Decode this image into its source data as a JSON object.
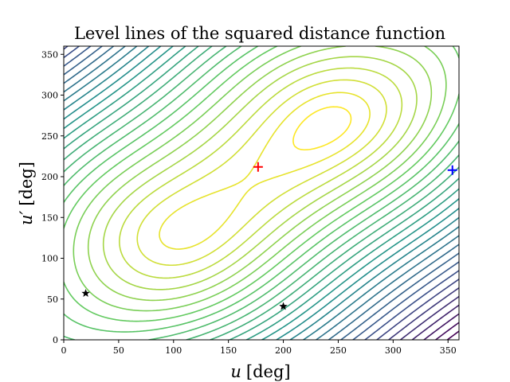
{
  "chart_data": {
    "type": "contour",
    "title": "Level lines of the squared distance function",
    "xlabel": "u [deg]",
    "xlabel_var": "u",
    "xlabel_unit": "[deg]",
    "ylabel": "u′ [deg]",
    "ylabel_var": "u′",
    "ylabel_unit": "[deg]",
    "xlim": [
      0,
      360
    ],
    "ylim": [
      0,
      360
    ],
    "xticks": [
      0,
      50,
      100,
      150,
      200,
      250,
      300,
      350
    ],
    "yticks": [
      0,
      50,
      100,
      150,
      200,
      250,
      300,
      350
    ],
    "colormap": [
      "#440154",
      "#3b528b",
      "#21918c",
      "#5ec962",
      "#fde725"
    ],
    "minimum": {
      "u": 177,
      "u_prime": 212,
      "marker": "+",
      "color": "#ff0000"
    },
    "plus_marker_blue": {
      "u": 354,
      "u_prime": 208,
      "marker": "+",
      "color": "#0000ff"
    },
    "star_markers": [
      {
        "u": 20,
        "u_prime": 57,
        "marker": "star",
        "color": "#000000"
      },
      {
        "u": 200,
        "u_prime": 41,
        "marker": "star",
        "color": "#000000"
      }
    ],
    "contour_levels": 30
  }
}
